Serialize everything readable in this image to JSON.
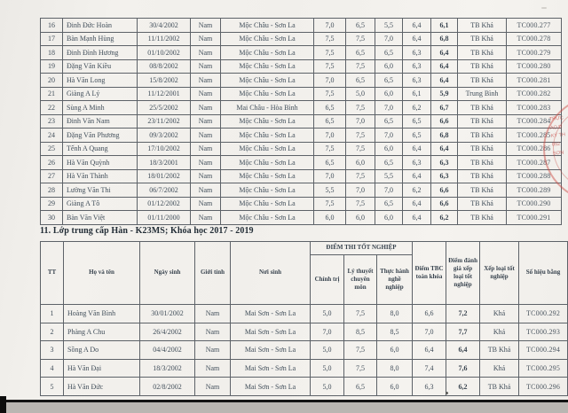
{
  "section": {
    "title": "11. Lớp trung cấp Hàn - K23MS; Khóa học 2017 - 2019"
  },
  "table1": {
    "rows": [
      [
        "16",
        "Đinh Đức Hoàn",
        "30/4/2002",
        "Nam",
        "Mộc Châu - Sơn La",
        "7,0",
        "6,5",
        "5,5",
        "6,4",
        "6,1",
        "TB Khá",
        "TC000.277"
      ],
      [
        "17",
        "Bàn Mạnh Hùng",
        "11/11/2002",
        "Nam",
        "Mộc Châu - Sơn La",
        "7,5",
        "7,5",
        "7,0",
        "6,4",
        "6,8",
        "TB Khá",
        "TC000.278"
      ],
      [
        "18",
        "Đinh Đình Hương",
        "01/10/2002",
        "Nam",
        "Mộc Châu - Sơn La",
        "7,5",
        "6,5",
        "6,5",
        "6,3",
        "6,4",
        "TB Khá",
        "TC000.279"
      ],
      [
        "19",
        "Đặng Văn Kiều",
        "08/8/2002",
        "Nam",
        "Mộc Châu - Sơn La",
        "7,5",
        "7,5",
        "6,0",
        "6,3",
        "6,4",
        "TB Khá",
        "TC000.280"
      ],
      [
        "20",
        "Hà Văn Long",
        "15/8/2002",
        "Nam",
        "Mộc Châu - Sơn La",
        "7,0",
        "6,5",
        "6,5",
        "6,3",
        "6,4",
        "TB Khá",
        "TC000.281"
      ],
      [
        "21",
        "Giàng A Lý",
        "11/12/2001",
        "Nam",
        "Mộc Châu - Sơn La",
        "7,5",
        "5,0",
        "6,0",
        "6,1",
        "5,9",
        "Trung Bình",
        "TC000.282"
      ],
      [
        "22",
        "Sùng A Minh",
        "25/5/2002",
        "Nam",
        "Mai Châu - Hòa Bình",
        "6,5",
        "7,5",
        "7,0",
        "6,2",
        "6,7",
        "TB Khá",
        "TC000.283"
      ],
      [
        "23",
        "Đinh Văn Nam",
        "23/11/2002",
        "Nam",
        "Mộc Châu - Sơn La",
        "6,5",
        "7,0",
        "6,5",
        "6,5",
        "6,6",
        "TB Khá",
        "TC000.284"
      ],
      [
        "24",
        "Đặng Văn Phương",
        "09/3/2002",
        "Nam",
        "Mộc Châu - Sơn La",
        "7,0",
        "7,5",
        "7,0",
        "6,5",
        "6,8",
        "TB Khá",
        "TC000.285"
      ],
      [
        "25",
        "Tếnh A Quang",
        "17/10/2002",
        "Nam",
        "Mộc Châu - Sơn La",
        "7,5",
        "7,5",
        "6,0",
        "6,4",
        "6,4",
        "TB Khá",
        "TC000.286"
      ],
      [
        "26",
        "Hà Văn Quỳnh",
        "18/3/2001",
        "Nam",
        "Mộc Châu - Sơn La",
        "6,5",
        "6,0",
        "6,5",
        "6,3",
        "6,3",
        "TB Khá",
        "TC000.287"
      ],
      [
        "27",
        "Hà Văn Thành",
        "18/01/2002",
        "Nam",
        "Mộc Châu - Sơn La",
        "7,0",
        "7,5",
        "5,5",
        "6,4",
        "6,3",
        "TB Khá",
        "TC000.288"
      ],
      [
        "28",
        "Lường Văn Thi",
        "06/7/2002",
        "Nam",
        "Mộc Châu - Sơn La",
        "5,5",
        "7,0",
        "7,0",
        "6,2",
        "6,6",
        "TB Khá",
        "TC000.289"
      ],
      [
        "29",
        "Giàng A Tô",
        "01/12/2002",
        "Nam",
        "Mộc Châu - Sơn La",
        "7,5",
        "7,5",
        "6,5",
        "6,4",
        "6,6",
        "TB Khá",
        "TC000.290"
      ],
      [
        "30",
        "Bàn Văn Việt",
        "01/11/2000",
        "Nam",
        "Mộc Châu - Sơn La",
        "6,0",
        "6,0",
        "6,0",
        "6,4",
        "6,2",
        "TB Khá",
        "TC000.291"
      ]
    ]
  },
  "table2": {
    "headers": {
      "tt": "TT",
      "name": "Họ và tên",
      "dob": "Ngày sinh",
      "gender": "Giới tính",
      "birthplace": "Nơi sinh",
      "exam_group": "ĐIỂM THI TỐT NGHIỆP",
      "politics": "Chính trị",
      "theory": "Lý thuyết chuyên môn",
      "practice": "Thực hành nghề nghiệp",
      "gpa": "Điểm TBC toàn khóa",
      "grad_score": "Điểm đánh giá xếp loại tốt nghiệp",
      "classification": "Xếp loại tốt nghiệp",
      "diploma_no": "Số hiệu bằng"
    },
    "rows": [
      [
        "1",
        "Hoàng Văn Bình",
        "30/01/2002",
        "Nam",
        "Mai Sơn - Sơn La",
        "5,0",
        "7,5",
        "8,0",
        "6,6",
        "7,2",
        "Khá",
        "TC000.292"
      ],
      [
        "2",
        "Phàng A Chu",
        "26/4/2002",
        "Nam",
        "Mai Sơn - Sơn La",
        "7,0",
        "8,5",
        "8,5",
        "7,0",
        "7,7",
        "Khá",
        "TC000.293"
      ],
      [
        "3",
        "Sồng A Do",
        "04/4/2002",
        "Nam",
        "Mai Sơn - Sơn La",
        "5,0",
        "7,5",
        "6,0",
        "6,4",
        "6,4",
        "TB Khá",
        "TC000.294"
      ],
      [
        "4",
        "Hà Văn Đại",
        "18/3/2002",
        "Nam",
        "Mai Sơn - Sơn La",
        "5,0",
        "7,5",
        "8,0",
        "7,4",
        "7,6",
        "Khá",
        "TC000.295"
      ],
      [
        "5",
        "Hà Văn Đức",
        "02/8/2002",
        "Nam",
        "Mai Sơn - Sơn La",
        "5,0",
        "6,5",
        "6,0",
        "6,3",
        "6,2",
        "TB Khá",
        "TC000.296"
      ]
    ]
  },
  "stamp": {
    "color": "#c9423c",
    "lines": [
      "TRỰC",
      "AO Đ",
      "KÝ TH",
      "092",
      "SƠN"
    ]
  }
}
